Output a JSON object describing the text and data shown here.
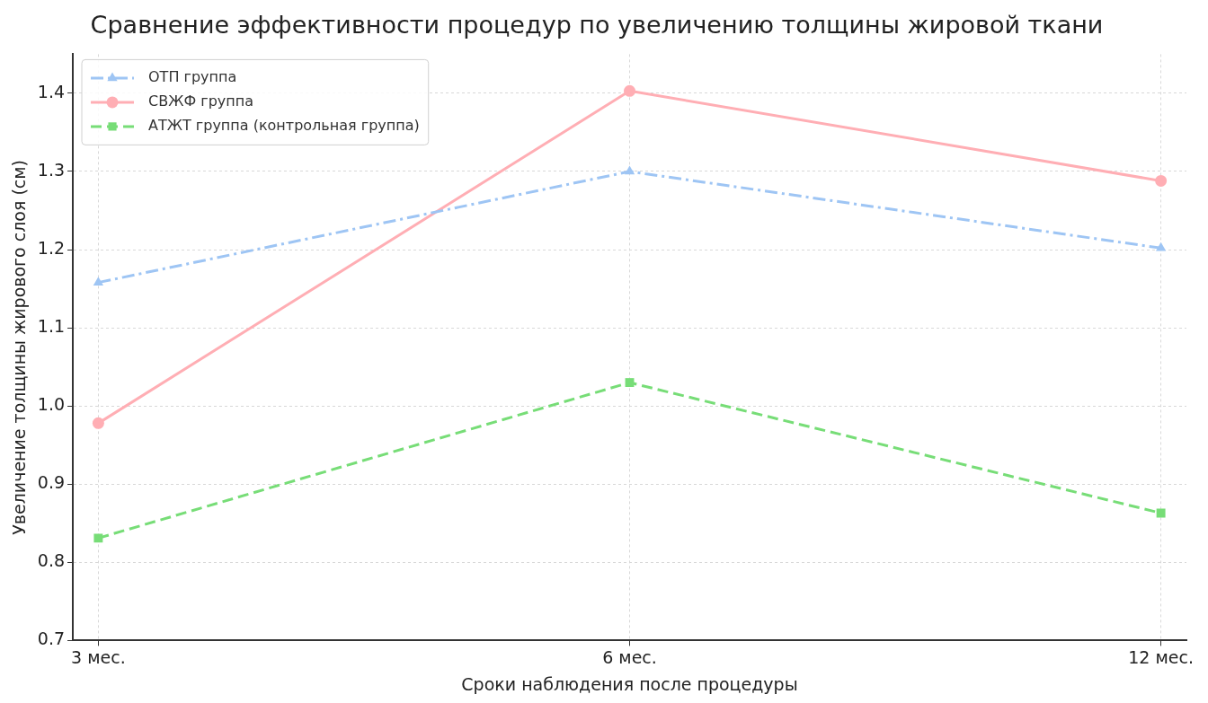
{
  "chart_data": {
    "type": "line",
    "title": "Сравнение эффективности процедур по увеличению толщины жировой ткани",
    "xlabel": "Сроки наблюдения после процедуры",
    "ylabel": "Увеличение толщины жирового слоя (см)",
    "categories": [
      "3 мес.",
      "6 мес.",
      "12 мес."
    ],
    "series": [
      {
        "name": "ОТП группа",
        "color": "#9ec5f4",
        "values": [
          1.158,
          1.3,
          1.202
        ],
        "marker": "triangle",
        "line_style": "dashdot"
      },
      {
        "name": "СВЖФ группа",
        "color": "#ffaeb4",
        "values": [
          0.978,
          1.403,
          1.288
        ],
        "marker": "circle",
        "line_style": "solid"
      },
      {
        "name": "АТЖТ группа (контрольная группа)",
        "color": "#77dd77",
        "values": [
          0.831,
          1.03,
          0.863
        ],
        "marker": "square",
        "line_style": "dashed"
      }
    ],
    "ylim": [
      0.7,
      1.45
    ],
    "yticks": [
      {
        "value": 0.7,
        "label": "0.7"
      },
      {
        "value": 0.8,
        "label": "0.8"
      },
      {
        "value": 0.9,
        "label": "0.9"
      },
      {
        "value": 1,
        "label": "1.0"
      },
      {
        "value": 1.1,
        "label": "1.1"
      },
      {
        "value": 1.2,
        "label": "1.2"
      },
      {
        "value": 1.3,
        "label": "1.3"
      },
      {
        "value": 1.4,
        "label": "1.4"
      }
    ],
    "grid": true,
    "legend": "top left"
  }
}
